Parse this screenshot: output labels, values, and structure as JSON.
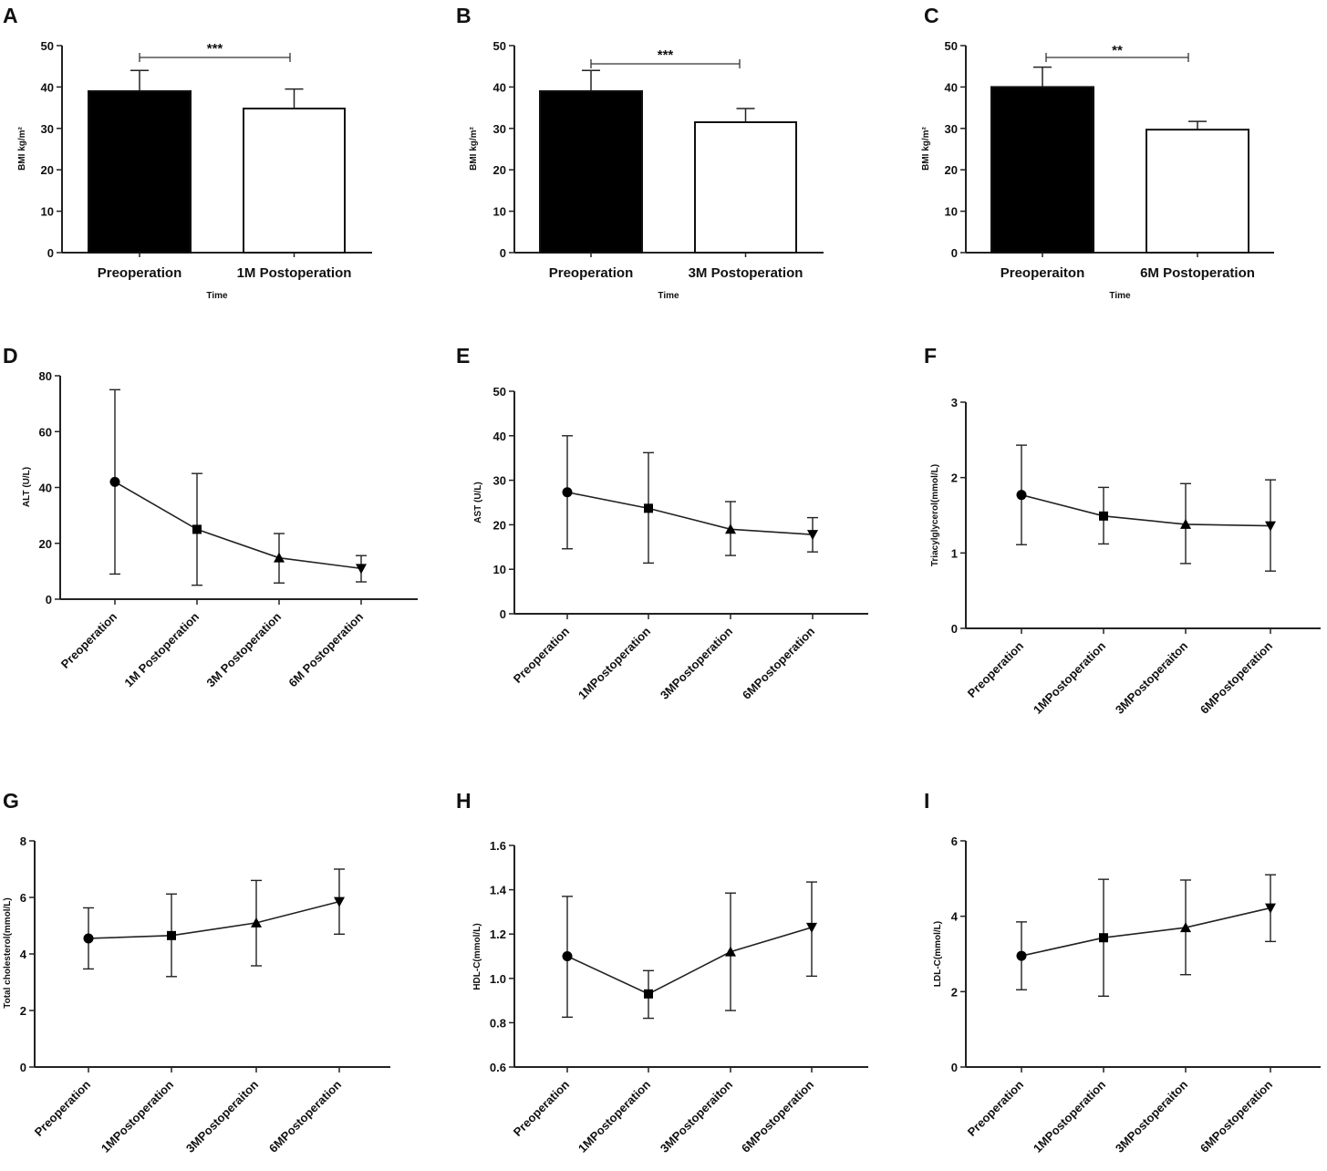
{
  "chart_data": [
    {
      "panel": "A",
      "type": "bar",
      "categories": [
        "Preoperation",
        "1M Postoperation"
      ],
      "values": [
        39,
        34.8
      ],
      "errors": [
        5,
        4.7
      ],
      "colors": [
        "#000000",
        "#ffffff"
      ],
      "ylabel": "BMI kg/m²",
      "xlabel": "Time",
      "ylim": [
        0,
        50
      ],
      "yticks": [
        "0",
        "10",
        "20",
        "30",
        "40",
        "50"
      ],
      "significance": "***"
    },
    {
      "panel": "B",
      "type": "bar",
      "categories": [
        "Preoperation",
        "3M Postoperation"
      ],
      "values": [
        39,
        31.5
      ],
      "errors": [
        5,
        3.3
      ],
      "colors": [
        "#000000",
        "#ffffff"
      ],
      "ylabel": "BMI kg/m²",
      "xlabel": "Time",
      "ylim": [
        0,
        50
      ],
      "yticks": [
        "0",
        "10",
        "20",
        "30",
        "40",
        "50"
      ],
      "significance": "***"
    },
    {
      "panel": "C",
      "type": "bar",
      "categories": [
        "Preoperaiton",
        "6M Postoperation"
      ],
      "values": [
        40,
        29.7
      ],
      "errors": [
        4.8,
        2
      ],
      "colors": [
        "#000000",
        "#ffffff"
      ],
      "ylabel": "BMI kg/m²",
      "xlabel": "Time",
      "ylim": [
        0,
        50
      ],
      "yticks": [
        "0",
        "10",
        "20",
        "30",
        "40",
        "50"
      ],
      "significance": "**"
    },
    {
      "panel": "D",
      "type": "line",
      "categories": [
        "Preoperation",
        "1M Postoperation",
        "3M Postoperation",
        "6M Postoperation"
      ],
      "values": [
        42,
        25,
        14.8,
        11
      ],
      "upper": [
        75,
        45,
        23.5,
        15.6
      ],
      "lower": [
        9,
        5,
        5.8,
        6.2
      ],
      "markers": [
        "circle",
        "square",
        "triangle-up",
        "triangle-down"
      ],
      "ylabel": "ALT (U/L)",
      "ylim": [
        0,
        80
      ],
      "yticks": [
        "0",
        "20",
        "40",
        "60",
        "80"
      ]
    },
    {
      "panel": "E",
      "type": "line",
      "categories": [
        "Preoperation",
        "1MPostoperation",
        "3MPostoperation",
        "6MPostoperation"
      ],
      "values": [
        27.3,
        23.7,
        19,
        17.8
      ],
      "upper": [
        40,
        36.2,
        25.2,
        21.6
      ],
      "lower": [
        14.6,
        11.4,
        13.1,
        13.9
      ],
      "markers": [
        "circle",
        "square",
        "triangle-up",
        "triangle-down"
      ],
      "ylabel": "AST (U/L)",
      "ylim": [
        0,
        50
      ],
      "yticks": [
        "0",
        "10",
        "20",
        "30",
        "40",
        "50"
      ]
    },
    {
      "panel": "F",
      "type": "line",
      "categories": [
        "Preoperation",
        "1MPostoperation",
        "3MPostoperaiton",
        "6MPostoperation"
      ],
      "values": [
        1.77,
        1.49,
        1.38,
        1.36
      ],
      "upper": [
        2.43,
        1.87,
        1.92,
        1.97
      ],
      "lower": [
        1.11,
        1.12,
        0.86,
        0.76
      ],
      "markers": [
        "circle",
        "square",
        "triangle-up",
        "triangle-down"
      ],
      "ylabel": "Triacylglycerol(mmol/L)",
      "ylim": [
        0,
        3
      ],
      "yticks": [
        "0",
        "1",
        "2",
        "3"
      ]
    },
    {
      "panel": "G",
      "type": "line",
      "categories": [
        "Preoperation",
        "1MPostoperation",
        "3MPostoperaiton",
        "6MPostoperation"
      ],
      "values": [
        4.55,
        4.65,
        5.1,
        5.85
      ],
      "upper": [
        5.63,
        6.12,
        6.6,
        7
      ],
      "lower": [
        3.47,
        3.2,
        3.58,
        4.7
      ],
      "markers": [
        "circle",
        "square",
        "triangle-up",
        "triangle-down"
      ],
      "ylabel": "Total cholesterol(mmol/L)",
      "ylim": [
        0,
        8
      ],
      "yticks": [
        "0",
        "2",
        "4",
        "6",
        "8"
      ]
    },
    {
      "panel": "H",
      "type": "line",
      "categories": [
        "Preoperation",
        "1MPostoperation",
        "3MPostoperaiton",
        "6MPostoperation"
      ],
      "values": [
        1.1,
        0.93,
        1.12,
        1.23
      ],
      "upper": [
        1.37,
        1.035,
        1.385,
        1.435
      ],
      "lower": [
        0.825,
        0.82,
        0.855,
        1.01
      ],
      "markers": [
        "circle",
        "square",
        "triangle-up",
        "triangle-down"
      ],
      "ylabel": "HDL-C(mmol/L)",
      "ylim": [
        0.6,
        1.6
      ],
      "yticks": [
        "0.6",
        "0.8",
        "1.0",
        "1.2",
        "1.4",
        "1.6"
      ]
    },
    {
      "panel": "I",
      "type": "line",
      "categories": [
        "Preoperation",
        "1MPostoperation",
        "3MPostoperaiton",
        "6MPostoperation"
      ],
      "values": [
        2.95,
        3.43,
        3.7,
        4.22
      ],
      "upper": [
        3.85,
        4.98,
        4.96,
        5.1
      ],
      "lower": [
        2.05,
        1.88,
        2.45,
        3.33
      ],
      "markers": [
        "circle",
        "square",
        "triangle-up",
        "triangle-down"
      ],
      "ylabel": "LDL-C(mmol/L)",
      "ylim": [
        0,
        6
      ],
      "yticks": [
        "0",
        "2",
        "4",
        "6"
      ]
    }
  ]
}
